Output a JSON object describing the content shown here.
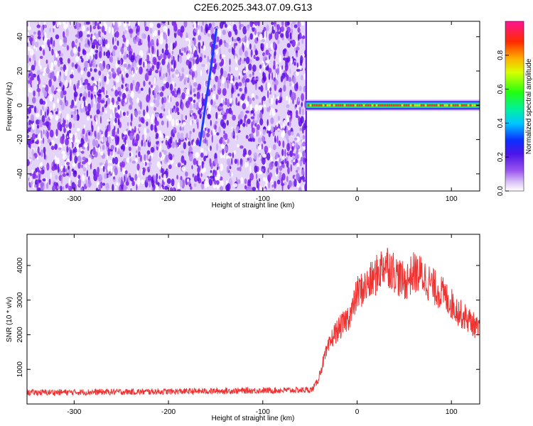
{
  "title": "C2E6.2025.343.07.09.G13",
  "chart_data": [
    {
      "type": "heatmap",
      "xlabel": "Height of straight line (km)",
      "ylabel": "Frequency (Hz)",
      "xlim": [
        -350,
        130
      ],
      "ylim": [
        -50,
        49
      ],
      "xticks": [
        -300,
        -200,
        -100,
        0,
        100
      ],
      "yticks": [
        -40,
        -20,
        0,
        20,
        40
      ],
      "noise_region_x": [
        -350,
        -54
      ],
      "tone_region_x": [
        -54,
        130
      ],
      "tone_frequency": 0,
      "streak": {
        "x": [
          -167,
          -149
        ],
        "freq": [
          -24,
          45
        ]
      },
      "colorbar": {
        "label": "Normalized spectral amplitude",
        "range": [
          0.0,
          1.0
        ],
        "ticks": [
          "0.0",
          "0.2",
          "0.4",
          "0.6",
          "0.8"
        ]
      }
    },
    {
      "type": "line",
      "xlabel": "Height of straight line (km)",
      "ylabel": "SNR (10 * v/v)",
      "xlim": [
        -350,
        130
      ],
      "ylim": [
        0,
        4900
      ],
      "xticks": [
        -300,
        -200,
        -100,
        0,
        100
      ],
      "yticks": [
        1000,
        2000,
        3000,
        4000
      ],
      "series": [
        {
          "color": "#ee3333",
          "x": [
            -350,
            -300,
            -250,
            -200,
            -150,
            -100,
            -60,
            -48,
            -42,
            -35,
            -25,
            -15,
            -5,
            0,
            10,
            20,
            30,
            40,
            50,
            60,
            70,
            80,
            90,
            100,
            110,
            120,
            130
          ],
          "y": [
            330,
            340,
            350,
            360,
            375,
            390,
            400,
            410,
            650,
            1300,
            2000,
            2300,
            2700,
            3200,
            3400,
            3700,
            4100,
            3800,
            3500,
            3800,
            3700,
            3400,
            3200,
            2900,
            2600,
            2400,
            2100
          ]
        }
      ]
    }
  ]
}
